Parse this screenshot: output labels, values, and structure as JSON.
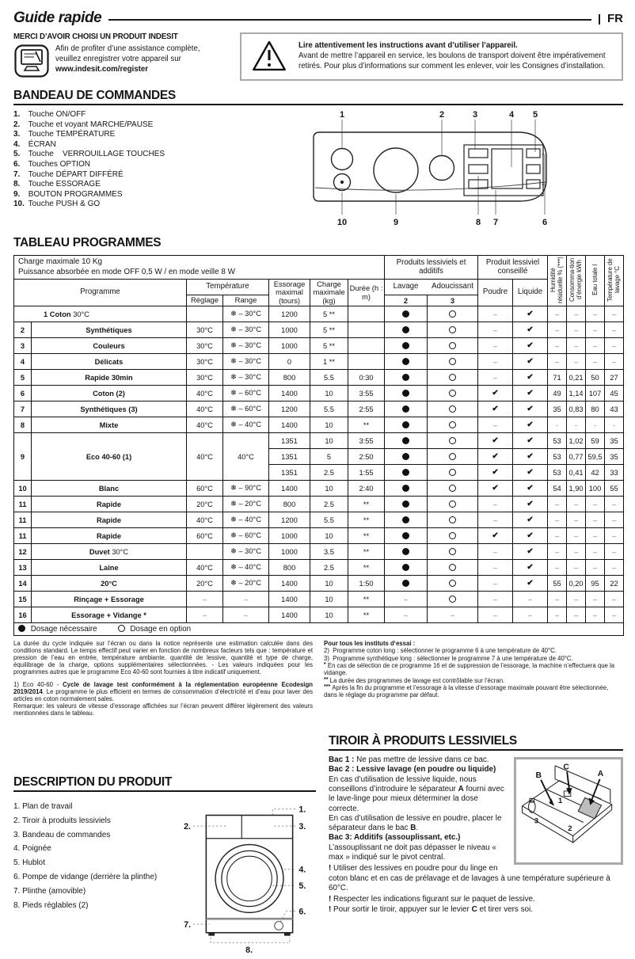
{
  "page": {
    "title": "Guide rapide",
    "lang": "FR"
  },
  "intro": {
    "thanks_title": "MERCI D’AVOIR CHOISI UN PRODUIT INDESIT",
    "register_lines": [
      "Afin de profiter d’une assistance complète,",
      "veuillez enregistrer votre appareil sur"
    ],
    "register_url": "www.indesit.com/register",
    "warning_bold": "Lire attentivement les instructions avant d’utiliser l’appareil.",
    "warning_text": "Avant de mettre l’appareil en service, les boulons de transport doivent être impérativement retirés. Pour plus d’informations sur comment les enlever, voir les Consignes d’installation."
  },
  "controls": {
    "title": "BANDEAU DE COMMANDES",
    "items": [
      {
        "num": "1.",
        "label": "Touche ON/OFF"
      },
      {
        "num": "2.",
        "label": "Touche et voyant MARCHE/PAUSE"
      },
      {
        "num": "3.",
        "label": "Touche TEMPÉRATURE"
      },
      {
        "num": "4.",
        "label": "ÉCRAN"
      },
      {
        "num": "5.",
        "label": "Touche    VERROUILLAGE TOUCHES"
      },
      {
        "num": "6.",
        "label": "Touches OPTION"
      },
      {
        "num": "7.",
        "label": "Touche DÉPART DIFFÉRÉ"
      },
      {
        "num": "8.",
        "label": "Touche ESSORAGE"
      },
      {
        "num": "9.",
        "label": "BOUTON PROGRAMMES"
      },
      {
        "num": "10.",
        "label": "Touche PUSH & GO"
      }
    ],
    "callouts_top": [
      "1",
      "2",
      "3",
      "4",
      "5"
    ],
    "callouts_bottom": [
      "10",
      "9",
      "8",
      "7",
      "6"
    ]
  },
  "programs": {
    "title": "TABLEAU PROGRAMMES",
    "header": {
      "line1": "Charge maximale 10 Kg",
      "line2": "Puissance absorbée en mode OFF 0,5 W / en mode veille 8 W",
      "produits": "Produits lessiviels et additifs",
      "conseille": "Produit lessiviel conseillé",
      "programme": "Programme",
      "temperature": "Température",
      "reglage": "Réglage",
      "range": "Range",
      "essorage": "Essorage maximal (tours)",
      "charge": "Charge maximale (kg)",
      "duree": "Durée (h : m)",
      "lavage": "Lavage",
      "adoucissant": "Adoucissant",
      "num2": "2",
      "num3": "3",
      "poudre": "Poudre",
      "liquide": "Liquide",
      "vert": [
        "Humidité résiduelle % (***)",
        "Consomma-tion d’énergie kWh",
        "Eau totale l",
        "Température de lavage °C"
      ]
    },
    "rows": [
      {
        "num": "1",
        "merged": true,
        "name_bold": "1 Coton",
        "name_plain": "30°C",
        "reglage": "",
        "range": "❄ – 30°C",
        "cells": [
          {
            "ess": "1200",
            "ch": "5 **",
            "dur": "",
            "lav": "●",
            "ado": "○",
            "pou": "–",
            "liq": "✔",
            "hum": "–",
            "con": "–",
            "eau": "–",
            "tmp": "–"
          }
        ]
      },
      {
        "num": "2",
        "name_bold": "Synthétiques",
        "name_plain": "",
        "reglage": "30°C",
        "range": "❄ – 30°C",
        "cells": [
          {
            "ess": "1000",
            "ch": "5 **",
            "dur": "",
            "lav": "●",
            "ado": "○",
            "pou": "–",
            "liq": "✔",
            "hum": "–",
            "con": "–",
            "eau": "–",
            "tmp": "–"
          }
        ]
      },
      {
        "num": "3",
        "name_bold": "Couleurs",
        "name_plain": "",
        "reglage": "30°C",
        "range": "❄ – 30°C",
        "cells": [
          {
            "ess": "1000",
            "ch": "5 **",
            "dur": "",
            "lav": "●",
            "ado": "○",
            "pou": "–",
            "liq": "✔",
            "hum": "–",
            "con": "–",
            "eau": "–",
            "tmp": "–"
          }
        ]
      },
      {
        "num": "4",
        "name_bold": "Délicats",
        "name_plain": "",
        "reglage": "30°C",
        "range": "❄ – 30°C",
        "cells": [
          {
            "ess": "0",
            "ch": "1 **",
            "dur": "",
            "lav": "●",
            "ado": "○",
            "pou": "–",
            "liq": "✔",
            "hum": "–",
            "con": "–",
            "eau": "–",
            "tmp": "–"
          }
        ]
      },
      {
        "num": "5",
        "name_bold": "Rapide 30min",
        "name_plain": "",
        "reglage": "30°C",
        "range": "❄ – 30°C",
        "cells": [
          {
            "ess": "800",
            "ch": "5.5",
            "dur": "0:30",
            "lav": "●",
            "ado": "○",
            "pou": "–",
            "liq": "✔",
            "hum": "71",
            "con": "0,21",
            "eau": "50",
            "tmp": "27"
          }
        ]
      },
      {
        "num": "6",
        "name_bold": "Coton (2)",
        "name_plain": "",
        "reglage": "40°C",
        "range": "❄ – 60°C",
        "cells": [
          {
            "ess": "1400",
            "ch": "10",
            "dur": "3:55",
            "lav": "●",
            "ado": "○",
            "pou": "✔",
            "liq": "✔",
            "hum": "49",
            "con": "1,14",
            "eau": "107",
            "tmp": "45"
          }
        ]
      },
      {
        "num": "7",
        "name_bold": "Synthétiques (3)",
        "name_plain": "",
        "reglage": "40°C",
        "range": "❄ – 60°C",
        "cells": [
          {
            "ess": "1200",
            "ch": "5.5",
            "dur": "2:55",
            "lav": "●",
            "ado": "○",
            "pou": "✔",
            "liq": "✔",
            "hum": "35",
            "con": "0,83",
            "eau": "80",
            "tmp": "43"
          }
        ]
      },
      {
        "num": "8",
        "name_bold": "Mixte",
        "name_plain": "",
        "reglage": "40°C",
        "range": "❄ – 40°C",
        "cells": [
          {
            "ess": "1400",
            "ch": "10",
            "dur": "**",
            "lav": "●",
            "ado": "○",
            "pou": "–",
            "liq": "✔",
            "hum": "-",
            "con": "-",
            "eau": "-",
            "tmp": "-"
          }
        ]
      },
      {
        "num": "9",
        "name_bold": "Eco 40-60 (1)",
        "name_plain": "",
        "reglage": "40°C",
        "range": "40°C",
        "cells": [
          {
            "ess": "1351",
            "ch": "10",
            "dur": "3:55",
            "lav": "●",
            "ado": "○",
            "pou": "✔",
            "liq": "✔",
            "hum": "53",
            "con": "1,02",
            "eau": "59",
            "tmp": "35"
          },
          {
            "ess": "1351",
            "ch": "5",
            "dur": "2:50",
            "lav": "●",
            "ado": "○",
            "pou": "✔",
            "liq": "✔",
            "hum": "53",
            "con": "0,77",
            "eau": "59,5",
            "tmp": "35"
          },
          {
            "ess": "1351",
            "ch": "2.5",
            "dur": "1:55",
            "lav": "●",
            "ado": "○",
            "pou": "✔",
            "liq": "✔",
            "hum": "53",
            "con": "0,41",
            "eau": "42",
            "tmp": "33"
          }
        ]
      },
      {
        "num": "10",
        "name_bold": "Blanc",
        "name_plain": "",
        "reglage": "60°C",
        "range": "❄ – 90°C",
        "cells": [
          {
            "ess": "1400",
            "ch": "10",
            "dur": "2:40",
            "lav": "●",
            "ado": "○",
            "pou": "✔",
            "liq": "✔",
            "hum": "54",
            "con": "1,90",
            "eau": "100",
            "tmp": "55"
          }
        ]
      },
      {
        "num": "11",
        "name_bold": "Rapide",
        "name_plain": "",
        "reglage": "20°C",
        "range": "❄ – 20°C",
        "cells": [
          {
            "ess": "800",
            "ch": "2.5",
            "dur": "**",
            "lav": "●",
            "ado": "○",
            "pou": "–",
            "liq": "✔",
            "hum": "–",
            "con": "–",
            "eau": "–",
            "tmp": "–"
          }
        ]
      },
      {
        "num": "11",
        "name_bold": "Rapide",
        "name_plain": "",
        "reglage": "40°C",
        "range": "❄ – 40°C",
        "cells": [
          {
            "ess": "1200",
            "ch": "5.5",
            "dur": "**",
            "lav": "●",
            "ado": "○",
            "pou": "–",
            "liq": "✔",
            "hum": "–",
            "con": "–",
            "eau": "–",
            "tmp": "–"
          }
        ]
      },
      {
        "num": "11",
        "name_bold": "Rapide",
        "name_plain": "",
        "reglage": "60°C",
        "range": "❄ – 60°C",
        "cells": [
          {
            "ess": "1000",
            "ch": "10",
            "dur": "**",
            "lav": "●",
            "ado": "○",
            "pou": "✔",
            "liq": "✔",
            "hum": "–",
            "con": "–",
            "eau": "–",
            "tmp": "–"
          }
        ]
      },
      {
        "num": "12",
        "name_bold": "Duvet",
        "name_plain": "30°C",
        "reglage": "",
        "range": "❄ – 30°C",
        "cells": [
          {
            "ess": "1000",
            "ch": "3.5",
            "dur": "**",
            "lav": "●",
            "ado": "○",
            "pou": "–",
            "liq": "✔",
            "hum": "–",
            "con": "–",
            "eau": "–",
            "tmp": "–"
          }
        ]
      },
      {
        "num": "13",
        "name_bold": "Laine",
        "name_plain": "",
        "reglage": "40°C",
        "range": "❄ – 40°C",
        "cells": [
          {
            "ess": "800",
            "ch": "2.5",
            "dur": "**",
            "lav": "●",
            "ado": "○",
            "pou": "–",
            "liq": "✔",
            "hum": "–",
            "con": "–",
            "eau": "–",
            "tmp": "–"
          }
        ]
      },
      {
        "num": "14",
        "name_bold": "20°C",
        "name_plain": "",
        "reglage": "20°C",
        "range": "❄ – 20°C",
        "cells": [
          {
            "ess": "1400",
            "ch": "10",
            "dur": "1:50",
            "lav": "●",
            "ado": "○",
            "pou": "–",
            "liq": "✔",
            "hum": "55",
            "con": "0,20",
            "eau": "95",
            "tmp": "22"
          }
        ]
      },
      {
        "num": "15",
        "name_bold": "Rinçage + Essorage",
        "name_plain": "",
        "reglage": "–",
        "range": "–",
        "cells": [
          {
            "ess": "1400",
            "ch": "10",
            "dur": "**",
            "lav": "–",
            "ado": "○",
            "pou": "–",
            "liq": "–",
            "hum": "–",
            "con": "–",
            "eau": "–",
            "tmp": "–"
          }
        ]
      },
      {
        "num": "16",
        "name_bold": "Essorage + Vidange *",
        "name_plain": "",
        "reglage": "–",
        "range": "–",
        "cells": [
          {
            "ess": "1400",
            "ch": "10",
            "dur": "**",
            "lav": "–",
            "ado": "–",
            "pou": "–",
            "liq": "–",
            "hum": "–",
            "con": "–",
            "eau": "–",
            "tmp": "–"
          }
        ]
      }
    ],
    "legend": [
      [
        "d",
        ""
      ],
      [
        "",
        " Dosage nécessaire"
      ],
      [
        "g",
        ""
      ],
      [
        "o",
        ""
      ],
      [
        "",
        " Dosage en option"
      ]
    ]
  },
  "notes_left": {
    "p1": [
      [
        "",
        "La durée du cycle indiquée sur l’écran ou dans la notice représente une estimation calculée dans des conditions standard. Le temps effectif peut varier en fonction de nombreux facteurs tels que : température et pression de l’eau en entrée, température ambiante, quantité de lessive, quantité et type de charge, équilibrage de la charge, options supplémentaires sélectionnées. - Les valeurs indiquées pour les programmes autres que le programme Eco 40-60 sont fournies à titre indicatif uniquement."
      ]
    ],
    "p2": [
      [
        "",
        "1) Eco 40-60 - "
      ],
      [
        "b",
        "Cycle de lavage test conformément à la réglementation européenne Ecodesign 2019/2014"
      ],
      [
        "",
        ". Le programme le plus efficient en termes de consommation d’électricité et d’eau pour laver des articles en coton normalement sales."
      ]
    ],
    "p3": [
      [
        "",
        "Remarque: les valeurs de vitesse d’essorage affichées sur l’écran peuvent différer légèrement des valeurs mentionnées dans le tableau."
      ]
    ]
  },
  "notes_right": {
    "heading": "Pour tous les instituts d‘essai :",
    "items": [
      [
        [
          "",
          "2)  Programme coton long : sélectionner le programme 6 à une température de 40°C."
        ]
      ],
      [
        [
          "",
          "3)  Programme synthétique long : sélectionner le programme 7 à une température de 40°C."
        ]
      ],
      [
        [
          "p",
          "*"
        ],
        [
          "",
          " En cas de sélection de ce programme 16 et de suppression de l’essorage, la machine n’effectuera que la vidange."
        ]
      ],
      [
        [
          "p",
          "**"
        ],
        [
          "",
          " La durée des programmes de lavage est contrôlable sur l’écran."
        ]
      ],
      [
        [
          "p",
          "***"
        ],
        [
          "",
          " Après la fin du programme et l’essorage à la vitesse d’essorage maximale pouvant être sélectionnée, dans le réglage du programme par défaut."
        ]
      ]
    ]
  },
  "description": {
    "title": "DESCRIPTION DU PRODUIT",
    "items": [
      {
        "num": "1.",
        "label": "Plan de travail"
      },
      {
        "num": "2.",
        "label": "Tiroir à produits lessiviels"
      },
      {
        "num": "3.",
        "label": "Bandeau de commandes"
      },
      {
        "num": "4.",
        "label": "Poignée"
      },
      {
        "num": "5.",
        "label": "Hublot"
      },
      {
        "num": "6.",
        "label": "Pompe de vidange (derrière la plinthe)"
      },
      {
        "num": "7.",
        "label": "Plinthe (amovible)"
      },
      {
        "num": "8.",
        "label": "Pieds réglables (2)"
      }
    ],
    "callouts": [
      "1.",
      "2.",
      "3.",
      "4.",
      "5.",
      "6.",
      "7.",
      "8."
    ]
  },
  "drawer": {
    "title": "TIROIR À PRODUITS LESSIVIELS",
    "paragraphs": [
      [
        [
          "b",
          "Bac 1 :"
        ],
        [
          "",
          " Ne pas mettre de lessive dans ce bac."
        ]
      ],
      [
        [
          "b",
          "Bac 2 : Lessive lavage (en poudre ou liquide)"
        ]
      ],
      [
        [
          "",
          "En cas d’utilisation de lessive liquide, nous conseillons d’introduire le séparateur "
        ],
        [
          "b",
          "A"
        ],
        [
          "",
          " fourni avec le lave-linge pour mieux déterminer la dose correcte."
        ]
      ],
      [
        [
          "",
          "En cas d’utilisation de lessive en poudre, placer le séparateur dans le bac "
        ],
        [
          "b",
          "B"
        ],
        [
          "",
          "."
        ]
      ],
      [
        [
          "b",
          "Bac 3: Additifs (assouplissant, etc.)"
        ]
      ],
      [
        [
          "",
          "L’assouplissant ne doit pas dépasser le niveau « max » indiqué sur le pivot central."
        ]
      ]
    ],
    "warnings": [
      [
        [
          "b",
          "!"
        ],
        [
          "",
          " Utiliser des lessives en poudre pour du linge en coton blanc et en cas de prélavage et de lavages à une température supérieure à 60°C."
        ]
      ],
      [
        [
          "b",
          "!"
        ],
        [
          "",
          " Respecter les indications figurant sur le paquet de lessive."
        ]
      ],
      [
        [
          "b",
          "!"
        ],
        [
          "",
          " Pour sortir le tiroir, appuyer sur le levier "
        ],
        [
          "b",
          "C"
        ],
        [
          "",
          " et tirer vers soi."
        ]
      ]
    ],
    "labels": {
      "letters": [
        "A",
        "B",
        "C"
      ],
      "numbers": [
        "1",
        "2",
        "3"
      ]
    }
  }
}
